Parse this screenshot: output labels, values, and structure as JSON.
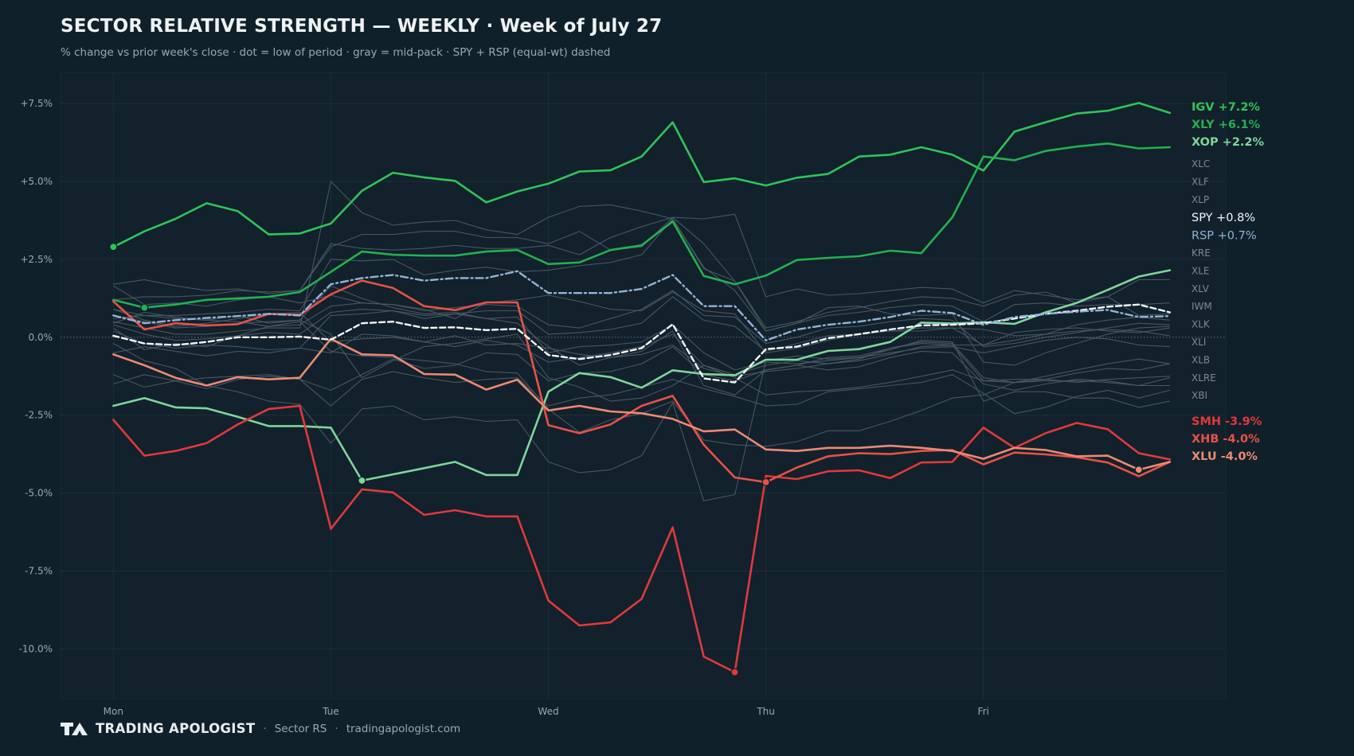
{
  "title": "SECTOR RELATIVE STRENGTH — WEEKLY · Week of July 27",
  "subtitle": "% change vs prior week's close · dot = low of period · gray = mid-pack · SPY + RSP (equal-wt) dashed",
  "footer": {
    "brand": "TRADING APOLOGIST",
    "logo_icon": "ta-logo-icon",
    "separator": "·",
    "product": "Sector RS",
    "site": "tradingapologist.com"
  },
  "colors": {
    "background": "#10202a",
    "plot_background": "#12212b",
    "grid": "#1e3038",
    "green_bright": "#2fc45a",
    "green_mid": "#24b050",
    "green_light": "#7fd69a",
    "red": "#e0393b",
    "red_mid": "#e65248",
    "salmon": "#ec8a74",
    "spy": "#f4f6f8",
    "rsp": "#93b3d6",
    "gray": "#4b5a63",
    "gray_label": "#7d8a92"
  },
  "chart_data": {
    "type": "line",
    "x_labels": [
      "Mon",
      "Tue",
      "Wed",
      "Thu",
      "Fri"
    ],
    "x_tick_positions": [
      0,
      7,
      14,
      21,
      28
    ],
    "x_range": [
      -1.7,
      35.8
    ],
    "ylim": [
      -11.6,
      8.5
    ],
    "yticks": [
      {
        "value": 7.5,
        "label": "+7.5%"
      },
      {
        "value": 5.0,
        "label": "+5.0%"
      },
      {
        "value": 2.5,
        "label": "+2.5%"
      },
      {
        "value": 0.0,
        "label": "0.0%"
      },
      {
        "value": -2.5,
        "label": "-2.5%"
      },
      {
        "value": -5.0,
        "label": "-5.0%"
      },
      {
        "value": -7.5,
        "label": "-7.5%"
      },
      {
        "value": -10.0,
        "label": "-10.0%"
      }
    ],
    "grid": true,
    "zero_line": true,
    "highlighted": [
      {
        "name": "IGV",
        "label": "IGV +7.2%",
        "color": "#2fc45a",
        "style": "solid",
        "bold": true,
        "low_index": 0,
        "values": [
          2.9,
          3.4,
          3.8,
          4.3,
          4.05,
          3.3,
          3.33,
          3.65,
          4.7,
          5.28,
          5.13,
          5.02,
          4.33,
          4.68,
          4.93,
          5.32,
          5.36,
          5.8,
          6.9,
          4.98,
          5.1,
          4.87,
          5.12,
          5.24,
          5.8,
          5.86,
          6.1,
          5.86,
          5.35,
          6.6,
          6.9,
          7.18,
          7.27,
          7.52,
          7.2
        ]
      },
      {
        "name": "XLY",
        "label": "XLY +6.1%",
        "color": "#24b050",
        "style": "solid",
        "bold": true,
        "low_index": 1,
        "values": [
          1.2,
          0.95,
          1.05,
          1.2,
          1.25,
          1.3,
          1.45,
          2.1,
          2.75,
          2.65,
          2.62,
          2.62,
          2.75,
          2.8,
          2.35,
          2.4,
          2.8,
          2.95,
          3.72,
          1.97,
          1.7,
          1.98,
          2.48,
          2.55,
          2.6,
          2.78,
          2.7,
          3.85,
          5.8,
          5.68,
          5.98,
          6.12,
          6.22,
          6.06,
          6.1
        ]
      },
      {
        "name": "XOP",
        "label": "XOP +2.2%",
        "color": "#7fd69a",
        "style": "solid",
        "bold": true,
        "low_index": 8,
        "values": [
          -2.2,
          -1.95,
          -2.25,
          -2.28,
          -2.55,
          -2.85,
          -2.85,
          -2.9,
          -4.6,
          -4.4,
          -4.2,
          -4.0,
          -4.42,
          -4.42,
          -1.75,
          -1.15,
          -1.28,
          -1.62,
          -1.06,
          -1.18,
          -1.22,
          -0.72,
          -0.72,
          -0.44,
          -0.38,
          -0.15,
          0.47,
          0.44,
          0.48,
          0.43,
          0.8,
          1.1,
          1.52,
          1.95,
          2.15
        ]
      },
      {
        "name": "SMH",
        "label": "SMH -3.9%",
        "color": "#e0393b",
        "style": "solid",
        "bold": true,
        "low_index": 20,
        "values": [
          -2.65,
          -3.8,
          -3.65,
          -3.4,
          -2.8,
          -2.3,
          -2.2,
          -6.15,
          -4.88,
          -4.98,
          -5.7,
          -5.55,
          -5.75,
          -5.75,
          -8.45,
          -9.25,
          -9.15,
          -8.4,
          -6.1,
          -10.25,
          -10.75,
          -4.45,
          -4.55,
          -4.3,
          -4.27,
          -4.52,
          -4.02,
          -4.0,
          -2.9,
          -3.55,
          -3.08,
          -2.75,
          -2.95,
          -3.72,
          -3.92
        ]
      },
      {
        "name": "XHB",
        "label": "XHB -4.0%",
        "color": "#e65248",
        "style": "solid",
        "bold": true,
        "low_index": 21,
        "values": [
          1.15,
          0.25,
          0.45,
          0.38,
          0.42,
          0.75,
          0.72,
          1.38,
          1.82,
          1.58,
          1.0,
          0.87,
          1.12,
          1.12,
          -2.82,
          -3.08,
          -2.8,
          -2.2,
          -1.88,
          -3.45,
          -4.5,
          -4.65,
          -4.18,
          -3.82,
          -3.72,
          -3.75,
          -3.65,
          -3.62,
          -4.08,
          -3.7,
          -3.76,
          -3.85,
          -4.02,
          -4.46,
          -4.0
        ]
      },
      {
        "name": "XLU",
        "label": "XLU -4.0%",
        "color": "#ec8a74",
        "style": "solid",
        "bold": true,
        "low_index": 33,
        "values": [
          -0.55,
          -0.9,
          -1.3,
          -1.55,
          -1.28,
          -1.35,
          -1.3,
          -0.05,
          -0.55,
          -0.58,
          -1.18,
          -1.2,
          -1.68,
          -1.36,
          -2.35,
          -2.2,
          -2.38,
          -2.44,
          -2.62,
          -3.02,
          -2.96,
          -3.6,
          -3.65,
          -3.55,
          -3.55,
          -3.48,
          -3.55,
          -3.65,
          -3.9,
          -3.55,
          -3.62,
          -3.82,
          -3.8,
          -4.25,
          -4.0
        ]
      },
      {
        "name": "SPY",
        "label": "SPY +0.8%",
        "color": "#f4f6f8",
        "style": "dashed",
        "bold": false,
        "values": [
          0.05,
          -0.2,
          -0.25,
          -0.15,
          0.0,
          0.0,
          0.02,
          -0.08,
          0.45,
          0.5,
          0.3,
          0.32,
          0.23,
          0.27,
          -0.57,
          -0.7,
          -0.57,
          -0.35,
          0.42,
          -1.32,
          -1.45,
          -0.38,
          -0.3,
          -0.03,
          0.1,
          0.25,
          0.38,
          0.4,
          0.45,
          0.6,
          0.75,
          0.85,
          0.98,
          1.05,
          0.8
        ]
      },
      {
        "name": "RSP",
        "label": "RSP +0.7%",
        "color": "#93b3d6",
        "style": "dashdot",
        "bold": false,
        "values": [
          0.7,
          0.45,
          0.55,
          0.62,
          0.68,
          0.75,
          0.7,
          1.7,
          1.9,
          2.0,
          1.82,
          1.9,
          1.9,
          2.12,
          1.42,
          1.42,
          1.42,
          1.55,
          2.0,
          1.0,
          1.0,
          -0.1,
          0.25,
          0.4,
          0.5,
          0.65,
          0.85,
          0.78,
          0.4,
          0.65,
          0.75,
          0.82,
          0.88,
          0.65,
          0.68
        ]
      }
    ],
    "mid_pack": [
      {
        "name": "XLC",
        "values": [
          1.7,
          1.85,
          1.65,
          1.5,
          1.55,
          1.4,
          1.5,
          2.9,
          3.3,
          3.3,
          3.4,
          3.4,
          3.2,
          3.2,
          3.0,
          3.4,
          2.8,
          2.9,
          3.85,
          3.8,
          3.95,
          1.3,
          1.55,
          1.35,
          1.4,
          1.5,
          1.6,
          1.55,
          1.1,
          1.5,
          1.35,
          1.2,
          1.3,
          0.7,
          0.75
        ]
      },
      {
        "name": "XLF",
        "values": [
          1.2,
          1.3,
          1.3,
          1.35,
          1.5,
          1.45,
          1.5,
          3.0,
          2.85,
          2.8,
          2.85,
          2.95,
          2.85,
          2.85,
          2.95,
          2.65,
          3.2,
          3.55,
          3.85,
          3.0,
          1.8,
          0.3,
          0.5,
          0.8,
          0.95,
          1.15,
          1.3,
          1.25,
          1.0,
          1.35,
          1.45,
          1.1,
          1.3,
          1.85,
          1.85
        ]
      },
      {
        "name": "XLP",
        "values": [
          0.6,
          0.7,
          0.7,
          0.75,
          0.8,
          0.9,
          0.85,
          2.5,
          2.45,
          2.5,
          2.0,
          2.15,
          2.25,
          2.1,
          2.15,
          2.3,
          2.4,
          2.65,
          3.8,
          2.25,
          1.5,
          0.2,
          0.45,
          0.7,
          0.8,
          0.95,
          1.05,
          1.0,
          0.5,
          1.05,
          1.1,
          1.0,
          1.05,
          1.05,
          1.1
        ]
      },
      {
        "name": "KRE",
        "values": [
          0.5,
          0.3,
          0.1,
          0.1,
          0.2,
          0.3,
          0.3,
          5.0,
          4.0,
          3.6,
          3.7,
          3.75,
          3.45,
          3.3,
          3.85,
          4.2,
          4.25,
          4.05,
          3.8,
          2.2,
          1.8,
          0.2,
          0.45,
          0.95,
          1.0,
          0.75,
          0.7,
          0.75,
          -0.8,
          -0.9,
          -0.5,
          -0.2,
          0.1,
          0.3,
          0.35
        ]
      },
      {
        "name": "XLE",
        "values": [
          1.65,
          1.05,
          1.1,
          1.0,
          1.2,
          1.3,
          1.1,
          1.35,
          1.1,
          1.05,
          0.9,
          0.6,
          1.1,
          1.2,
          1.35,
          1.15,
          0.9,
          0.85,
          1.45,
          0.85,
          0.75,
          -0.5,
          -0.35,
          -0.1,
          0.1,
          0.2,
          0.2,
          0.3,
          0.25,
          0.05,
          0.1,
          0.4,
          0.55,
          0.65,
          0.55
        ]
      },
      {
        "name": "XLV",
        "values": [
          0.9,
          0.7,
          0.6,
          0.55,
          0.5,
          0.35,
          0.4,
          1.0,
          1.1,
          1.05,
          0.85,
          0.95,
          1.05,
          1.0,
          0.4,
          0.3,
          0.6,
          0.9,
          1.5,
          0.7,
          0.65,
          -0.2,
          0.0,
          0.3,
          0.35,
          0.5,
          0.6,
          0.55,
          -0.3,
          -0.2,
          0.0,
          0.15,
          0.3,
          0.45,
          0.4
        ]
      },
      {
        "name": "IWM",
        "values": [
          0.4,
          0.1,
          -0.1,
          -0.05,
          0.05,
          0.15,
          0.1,
          0.8,
          0.9,
          0.85,
          0.6,
          0.75,
          0.85,
          0.85,
          0.1,
          0.15,
          0.25,
          0.45,
          1.3,
          0.55,
          0.35,
          -0.45,
          -0.2,
          0.05,
          0.1,
          0.2,
          0.3,
          0.3,
          -0.25,
          -0.1,
          0.1,
          0.2,
          0.25,
          0.2,
          0.05
        ]
      },
      {
        "name": "XLK",
        "values": [
          -0.5,
          -0.3,
          -0.45,
          -0.6,
          -0.45,
          -0.5,
          -0.35,
          0.7,
          0.75,
          0.85,
          0.7,
          0.75,
          0.6,
          0.65,
          -0.5,
          -0.3,
          -0.25,
          -0.15,
          0.4,
          -0.5,
          -1.05,
          -0.8,
          -0.85,
          -0.75,
          -0.65,
          -0.5,
          -0.35,
          -0.3,
          -0.5,
          -0.3,
          -0.1,
          0.0,
          -0.05,
          -0.25,
          -0.3
        ]
      },
      {
        "name": "XLI",
        "values": [
          0.2,
          -0.2,
          -0.35,
          -0.25,
          -0.3,
          -0.4,
          -0.35,
          -0.5,
          0.1,
          0.05,
          -0.15,
          -0.3,
          -0.1,
          -0.25,
          -0.8,
          -0.65,
          -0.5,
          -0.3,
          0.1,
          -0.9,
          -1.2,
          -0.9,
          -0.75,
          -0.85,
          -0.7,
          -0.35,
          -0.15,
          -0.2,
          -1.3,
          -1.45,
          -1.25,
          -1.05,
          -0.85,
          -0.7,
          -0.85
        ]
      },
      {
        "name": "XLB",
        "values": [
          -1.2,
          -1.6,
          -1.4,
          -1.3,
          -1.25,
          -1.2,
          -1.35,
          -1.7,
          -1.2,
          -0.7,
          -1.0,
          -0.9,
          -0.5,
          -0.55,
          -1.4,
          -1.15,
          -1.1,
          -0.85,
          -0.3,
          -1.2,
          -1.4,
          -1.05,
          -0.9,
          -1.05,
          -0.95,
          -0.65,
          -0.45,
          -0.5,
          -1.5,
          -1.7,
          -1.5,
          -1.35,
          -1.4,
          -1.55,
          -1.3
        ]
      },
      {
        "name": "XLRE",
        "values": [
          -1.5,
          -1.2,
          -1.4,
          -1.65,
          -1.35,
          -1.25,
          -1.35,
          -2.2,
          -1.35,
          -1.1,
          -1.3,
          -1.45,
          -1.35,
          -1.3,
          -2.2,
          -1.95,
          -1.85,
          -1.6,
          -1.35,
          -1.65,
          -1.9,
          -2.2,
          -2.15,
          -1.75,
          -1.65,
          -1.55,
          -1.45,
          -1.2,
          -1.8,
          -2.45,
          -2.25,
          -1.9,
          -1.7,
          -1.95,
          -1.7
        ]
      },
      {
        "name": "XBI",
        "values": [
          -0.2,
          -0.75,
          -1.0,
          -1.55,
          -1.75,
          -2.05,
          -2.15,
          -3.4,
          -2.3,
          -2.2,
          -2.65,
          -2.55,
          -2.7,
          -2.65,
          -4.0,
          -4.35,
          -4.25,
          -3.8,
          -2.1,
          -5.25,
          -5.05,
          -0.75,
          -0.6,
          -0.7,
          -0.65,
          -0.4,
          -0.1,
          -0.15,
          -2.05,
          -1.75,
          -1.75,
          -1.95,
          -1.95,
          -2.25,
          -2.05
        ]
      },
      {
        "name": "—",
        "values": [
          0.7,
          0.5,
          0.3,
          0.35,
          0.45,
          0.5,
          0.55,
          1.65,
          1.25,
          0.95,
          0.75,
          0.8,
          0.6,
          0.45,
          -0.3,
          -0.9,
          -0.65,
          -0.45,
          0.2,
          -1.55,
          -1.85,
          -1.05,
          -0.9,
          -0.65,
          -0.6,
          -0.35,
          -0.2,
          -0.25,
          -1.4,
          -1.45,
          -1.35,
          -1.15,
          -1.0,
          -1.05,
          -0.85
        ]
      },
      {
        "name": "—",
        "values": [
          0.3,
          -0.4,
          -0.2,
          -0.3,
          0.05,
          0.35,
          0.5,
          -0.45,
          -0.6,
          -0.65,
          -0.75,
          -0.85,
          -1.1,
          -1.15,
          -2.3,
          -3.05,
          -2.65,
          -2.45,
          -2.05,
          -3.3,
          -3.45,
          -3.5,
          -3.35,
          -3.0,
          -3.0,
          -2.7,
          -2.35,
          -1.95,
          -1.85,
          -1.45,
          -1.4,
          -1.4,
          -1.45,
          -1.55,
          -1.55
        ]
      },
      {
        "name": "—",
        "values": [
          0.45,
          0.8,
          0.65,
          0.55,
          0.7,
          0.45,
          0.55,
          0.1,
          -1.3,
          -0.75,
          -0.3,
          -0.2,
          -0.05,
          0.1,
          -1.3,
          -1.6,
          -2.05,
          -1.95,
          -1.55,
          -0.9,
          -1.3,
          -1.85,
          -1.75,
          -1.7,
          -1.6,
          -1.45,
          -1.25,
          -1.05,
          -1.4,
          -1.35,
          -1.35,
          -1.45,
          -1.35,
          -1.3,
          -1.25
        ]
      },
      {
        "name": "—",
        "values": [
          0.9,
          0.55,
          0.35,
          0.45,
          0.6,
          0.75,
          0.8,
          -0.15,
          -0.05,
          0.0,
          -0.15,
          0.05,
          -0.25,
          -0.2,
          -0.35,
          -0.55,
          -0.65,
          -0.55,
          -0.25,
          -1.0,
          -1.25,
          -1.1,
          -1.0,
          -0.85,
          -0.75,
          -0.55,
          -0.3,
          -0.25,
          -0.25,
          0.15,
          0.25,
          0.3,
          0.2,
          0.15,
          0.3
        ]
      }
    ],
    "mid_pack_labels": [
      "XLC",
      "XLF",
      "XLP",
      "KRE",
      "XLE",
      "XLV",
      "IWM",
      "XLK",
      "XLI",
      "XLB",
      "XLRE",
      "XBI"
    ]
  }
}
